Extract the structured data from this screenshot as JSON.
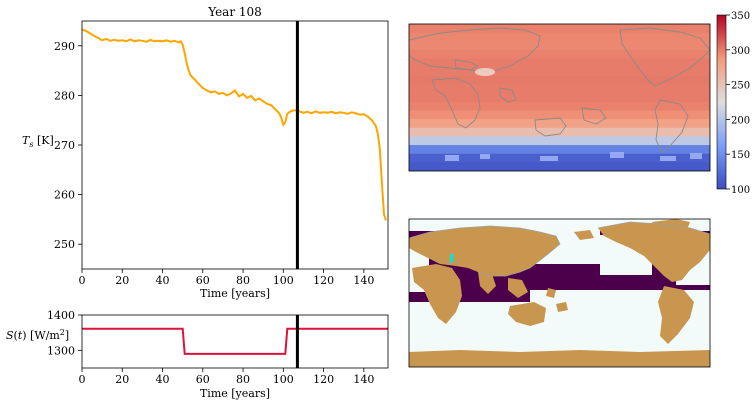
{
  "figure": {
    "title": "Year 108",
    "marker_year": 107
  },
  "chart_data": [
    {
      "id": "temperature",
      "type": "line",
      "title": "Year 108",
      "xlabel": "Time [years]",
      "ylabel": "T_s [K]",
      "xlim": [
        0,
        152
      ],
      "ylim": [
        245,
        295
      ],
      "xticks": [
        0,
        20,
        40,
        60,
        80,
        100,
        120,
        140
      ],
      "yticks": [
        250,
        260,
        270,
        280,
        290
      ],
      "series": [
        {
          "color": "#ffa500",
          "x": [
            0,
            2,
            4,
            6,
            8,
            10,
            12,
            14,
            16,
            18,
            20,
            22,
            24,
            26,
            28,
            30,
            32,
            34,
            36,
            38,
            40,
            42,
            44,
            46,
            48,
            49,
            50,
            51,
            52,
            53,
            54,
            56,
            58,
            60,
            62,
            64,
            66,
            68,
            70,
            72,
            74,
            76,
            78,
            80,
            82,
            84,
            86,
            88,
            90,
            92,
            94,
            96,
            98,
            99,
            100,
            101,
            102,
            104,
            106,
            108,
            110,
            112,
            114,
            116,
            118,
            120,
            122,
            124,
            126,
            128,
            130,
            132,
            134,
            136,
            138,
            140,
            142,
            144,
            146,
            147,
            148,
            149,
            150,
            151
          ],
          "y": [
            293.3,
            293.0,
            292.5,
            292.0,
            291.6,
            291.1,
            291.4,
            291.0,
            291.2,
            291.0,
            291.1,
            290.9,
            291.3,
            290.9,
            291.1,
            291.0,
            290.8,
            291.2,
            290.9,
            291.0,
            290.9,
            291.1,
            290.8,
            291.0,
            290.7,
            290.9,
            290.2,
            288.5,
            286.5,
            285.0,
            284.0,
            283.2,
            282.3,
            281.5,
            281.0,
            280.6,
            280.8,
            280.3,
            280.5,
            280.0,
            280.4,
            281.0,
            279.8,
            280.3,
            279.5,
            279.9,
            279.0,
            279.4,
            278.8,
            278.3,
            278.0,
            277.2,
            276.4,
            275.5,
            274.1,
            274.6,
            276.3,
            276.9,
            277.0,
            276.8,
            276.5,
            276.7,
            276.4,
            276.8,
            276.5,
            276.6,
            276.5,
            276.7,
            276.4,
            276.6,
            276.5,
            276.3,
            276.6,
            276.4,
            276.1,
            276.2,
            275.7,
            275.0,
            273.8,
            272.2,
            269.0,
            262.0,
            256.0,
            254.8
          ]
        }
      ],
      "marker_x": 107
    },
    {
      "id": "insolation",
      "type": "line",
      "xlabel": "Time [years]",
      "ylabel": "S(t) [W/m²]",
      "xlim": [
        0,
        152
      ],
      "ylim": [
        1250,
        1400
      ],
      "xticks": [
        0,
        20,
        40,
        60,
        80,
        100,
        120,
        140
      ],
      "yticks": [
        1300,
        1400
      ],
      "series": [
        {
          "color": "#dc143c",
          "x": [
            0,
            50,
            51,
            101,
            102,
            152
          ],
          "y": [
            1361,
            1361,
            1290,
            1290,
            1361,
            1361
          ]
        }
      ],
      "marker_x": 107
    },
    {
      "id": "temperature-map",
      "type": "heatmap",
      "colormap": "coolwarm",
      "colorbar_ticks": [
        100,
        150,
        200,
        250,
        300,
        350
      ],
      "clim": [
        100,
        350
      ],
      "latitudes": [
        80,
        70,
        60,
        50,
        40,
        30,
        20,
        10,
        0,
        -10,
        -20,
        -30,
        -40,
        -50,
        -60,
        -70,
        -80
      ],
      "values": [
        298,
        296,
        295,
        298,
        300,
        300,
        301,
        300,
        300,
        298,
        292,
        280,
        255,
        205,
        140,
        115,
        110
      ]
    },
    {
      "id": "surface-type-map",
      "type": "heatmap",
      "legend": {
        "land": "#c8964f",
        "sea_ice": "#f2fafa",
        "ocean": "#4c004c",
        "lake": "#00e5e5"
      }
    }
  ]
}
